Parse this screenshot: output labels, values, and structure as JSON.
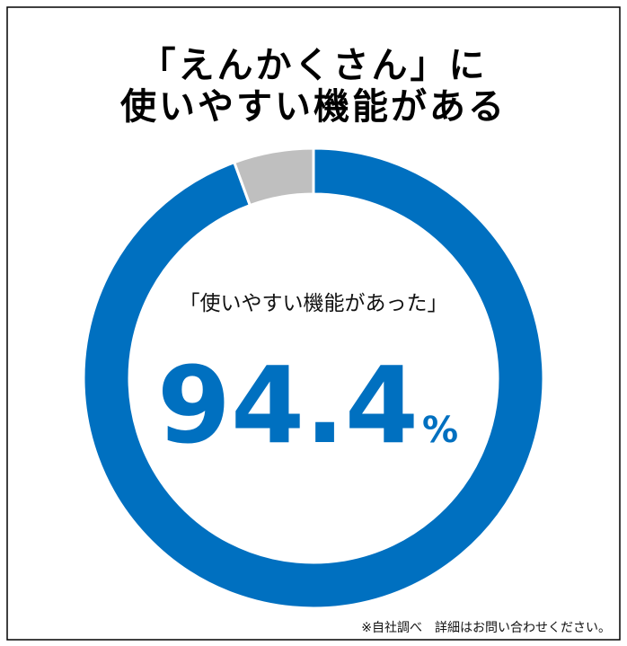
{
  "chart_data": {
    "type": "donut",
    "title": [
      "「えんかくさん」に",
      "使いやすい機能がある"
    ],
    "center_label": "「使いやすい機能があった」",
    "values": [
      94.4,
      5.6
    ],
    "unit": "%",
    "colors": [
      "#0070c0",
      "#bfbfbf"
    ],
    "footnote": "※自社調べ　詳細はお問い合わせください。"
  }
}
